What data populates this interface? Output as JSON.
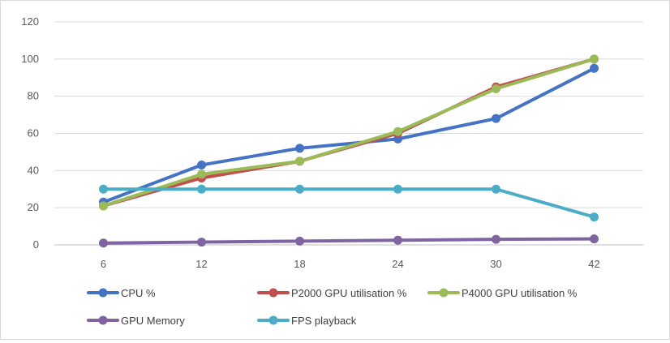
{
  "chart_data": {
    "type": "line",
    "title": "",
    "xlabel": "",
    "ylabel": "",
    "categories": [
      "6",
      "12",
      "18",
      "24",
      "30",
      "42"
    ],
    "ylim": [
      0,
      120
    ],
    "yticks": [
      0,
      20,
      40,
      60,
      80,
      100,
      120
    ],
    "grid": "horizontal",
    "legend_position": "bottom",
    "series": [
      {
        "name": "CPU %",
        "color": "#4472c4",
        "values": [
          23,
          43,
          52,
          57,
          68,
          95
        ]
      },
      {
        "name": "P2000 GPU utilisation %",
        "color": "#c0504d",
        "values": [
          21,
          36,
          45,
          60,
          85,
          100
        ]
      },
      {
        "name": "P4000 GPU utilisation %",
        "color": "#9bbb59",
        "values": [
          21,
          38,
          45,
          61,
          84,
          100
        ]
      },
      {
        "name": "GPU Memory",
        "color": "#8064a2",
        "values": [
          1,
          1.5,
          2,
          2.5,
          3,
          3.2
        ]
      },
      {
        "name": "FPS playback",
        "color": "#4bacc6",
        "values": [
          30,
          30,
          30,
          30,
          30,
          15
        ]
      }
    ]
  }
}
